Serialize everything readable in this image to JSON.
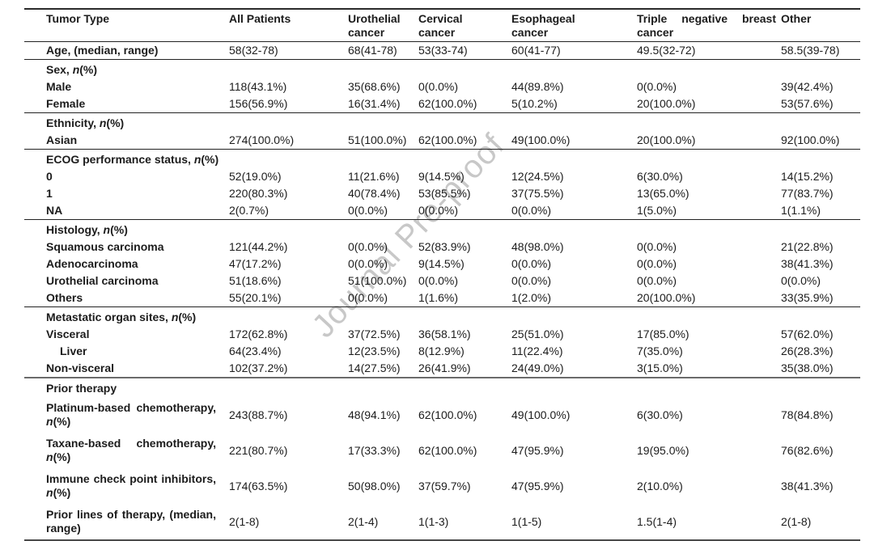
{
  "watermark": {
    "text": "Journal Pre-proof",
    "color": "#c8c8c8",
    "angle_deg": -47
  },
  "table": {
    "columns": [
      {
        "label": "Tumor Type"
      },
      {
        "label": "All Patients"
      },
      {
        "label": "Urothelial cancer"
      },
      {
        "label": "Cervical cancer"
      },
      {
        "label": "Esophageal cancer"
      },
      {
        "label": "Triple negative breast cancer"
      },
      {
        "label": "Other"
      }
    ],
    "rows": [
      {
        "type": "data",
        "label": "Age, (median, range)",
        "values": [
          "58(32-78)",
          "68(41-78)",
          "53(33-74)",
          "60(41-77)",
          "49.5(32-72)",
          "58.5(39-78)"
        ],
        "rule": "thin"
      },
      {
        "type": "group",
        "label": "Sex, n(%)"
      },
      {
        "type": "data",
        "label": "Male",
        "values": [
          "118(43.1%)",
          "35(68.6%)",
          "0(0.0%)",
          "44(89.8%)",
          "0(0.0%)",
          "39(42.4%)"
        ]
      },
      {
        "type": "data",
        "label": "Female",
        "values": [
          "156(56.9%)",
          "16(31.4%)",
          "62(100.0%)",
          "5(10.2%)",
          "20(100.0%)",
          "53(57.6%)"
        ],
        "rule": "thin"
      },
      {
        "type": "group",
        "label": "Ethnicity, n(%)"
      },
      {
        "type": "data",
        "label": "Asian",
        "values": [
          "274(100.0%)",
          "51(100.0%)",
          "62(100.0%)",
          "49(100.0%)",
          "20(100.0%)",
          "92(100.0%)"
        ],
        "rule": "thin"
      },
      {
        "type": "group",
        "label": "ECOG performance status, n(%)"
      },
      {
        "type": "data",
        "label": "0",
        "values": [
          "52(19.0%)",
          "11(21.6%)",
          "9(14.5%)",
          "12(24.5%)",
          "6(30.0%)",
          "14(15.2%)"
        ]
      },
      {
        "type": "data",
        "label": "1",
        "values": [
          "220(80.3%)",
          "40(78.4%)",
          "53(85.5%)",
          "37(75.5%)",
          "13(65.0%)",
          "77(83.7%)"
        ]
      },
      {
        "type": "data",
        "label": "NA",
        "values": [
          "2(0.7%)",
          "0(0.0%)",
          "0(0.0%)",
          "0(0.0%)",
          "1(5.0%)",
          "1(1.1%)"
        ],
        "rule": "thin"
      },
      {
        "type": "group",
        "label": "Histology, n(%)"
      },
      {
        "type": "data",
        "label": "Squamous carcinoma",
        "values": [
          "121(44.2%)",
          "0(0.0%)",
          "52(83.9%)",
          "48(98.0%)",
          "0(0.0%)",
          "21(22.8%)"
        ]
      },
      {
        "type": "data",
        "label": "Adenocarcinoma",
        "values": [
          "47(17.2%)",
          "0(0.0%)",
          "9(14.5%)",
          "0(0.0%)",
          "0(0.0%)",
          "38(41.3%)"
        ]
      },
      {
        "type": "data",
        "label": "Urothelial carcinoma",
        "values": [
          "51(18.6%)",
          "51(100.0%)",
          "0(0.0%)",
          "0(0.0%)",
          "0(0.0%)",
          "0(0.0%)"
        ]
      },
      {
        "type": "data",
        "label": "Others",
        "values": [
          "55(20.1%)",
          "0(0.0%)",
          "1(1.6%)",
          "1(2.0%)",
          "20(100.0%)",
          "33(35.9%)"
        ],
        "rule": "thin"
      },
      {
        "type": "group",
        "label": "Metastatic organ sites, n(%)"
      },
      {
        "type": "data",
        "label": "Visceral",
        "values": [
          "172(62.8%)",
          "37(72.5%)",
          "36(58.1%)",
          "25(51.0%)",
          "17(85.0%)",
          "57(62.0%)"
        ]
      },
      {
        "type": "data",
        "label": "Liver",
        "indent": true,
        "values": [
          "64(23.4%)",
          "12(23.5%)",
          "8(12.9%)",
          "11(22.4%)",
          "7(35.0%)",
          "26(28.3%)"
        ]
      },
      {
        "type": "data",
        "label": "Non-visceral",
        "values": [
          "102(37.2%)",
          "14(27.5%)",
          "26(41.9%)",
          "24(49.0%)",
          "3(15.0%)",
          "35(38.0%)"
        ],
        "rule": "thick"
      },
      {
        "type": "group",
        "label": "Prior therapy"
      },
      {
        "type": "data",
        "label": "Platinum-based chemotherapy, n(%)",
        "tall": true,
        "values": [
          "243(88.7%)",
          "48(94.1%)",
          "62(100.0%)",
          "49(100.0%)",
          "6(30.0%)",
          "78(84.8%)"
        ]
      },
      {
        "type": "data",
        "label": "Taxane-based chemotherapy, n(%)",
        "tall": true,
        "values": [
          "221(80.7%)",
          "17(33.3%)",
          "62(100.0%)",
          "47(95.9%)",
          "19(95.0%)",
          "76(82.6%)"
        ]
      },
      {
        "type": "data",
        "label": "Immune check point inhibitors, n(%)",
        "tall": true,
        "values": [
          "174(63.5%)",
          "50(98.0%)",
          "37(59.7%)",
          "47(95.9%)",
          "2(10.0%)",
          "38(41.3%)"
        ]
      },
      {
        "type": "data",
        "label": "Prior lines of therapy, (median, range)",
        "tall": true,
        "values": [
          "2(1-8)",
          "2(1-4)",
          "1(1-3)",
          "1(1-5)",
          "1.5(1-4)",
          "2(1-8)"
        ]
      }
    ]
  }
}
